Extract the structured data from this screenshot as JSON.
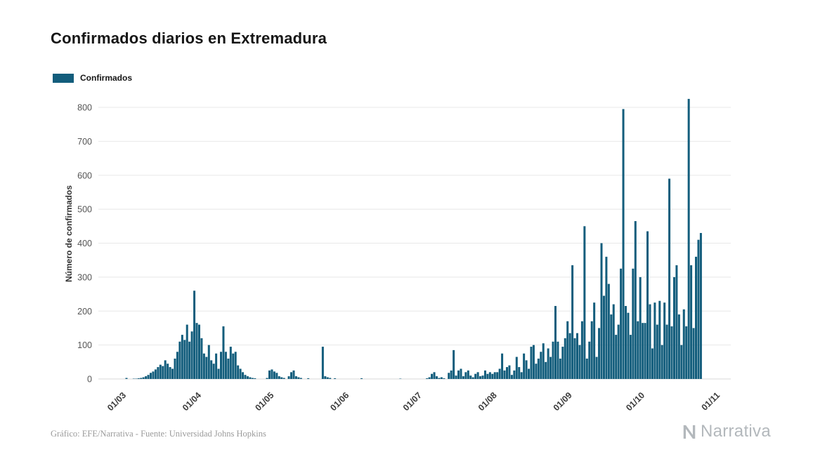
{
  "page": {
    "title": "Confirmados diarios en Extremadura"
  },
  "legend": {
    "label": "Confirmados",
    "color": "#135d7c"
  },
  "footer": {
    "credit": "Gráfico: EFE/Narrativa - Fuente: Universidad Johns Hopkins",
    "brand": "Narrativa"
  },
  "chart_data": {
    "type": "bar",
    "title": "Confirmados diarios en Extremadura",
    "xlabel": "",
    "ylabel": "Número de confirmados",
    "ylim": [
      0,
      800
    ],
    "yticks": [
      0,
      100,
      200,
      300,
      400,
      500,
      600,
      700,
      800
    ],
    "grid": true,
    "legend_position": "top-left",
    "x_tick_labels": [
      "01/03",
      "01/04",
      "01/05",
      "01/06",
      "01/07",
      "01/08",
      "01/09",
      "01/10",
      "01/11"
    ],
    "x_tick_day_index": [
      0,
      31,
      61,
      92,
      122,
      153,
      184,
      214,
      245
    ],
    "series": [
      {
        "name": "Confirmados",
        "color": "#135d7c",
        "values": [
          3,
          0,
          0,
          1,
          1,
          2,
          3,
          5,
          8,
          12,
          18,
          22,
          28,
          35,
          42,
          38,
          55,
          45,
          35,
          30,
          60,
          80,
          110,
          130,
          115,
          160,
          110,
          140,
          260,
          165,
          160,
          120,
          75,
          65,
          100,
          55,
          45,
          75,
          30,
          80,
          155,
          80,
          60,
          95,
          75,
          80,
          40,
          30,
          20,
          12,
          8,
          5,
          3,
          2,
          0,
          0,
          0,
          0,
          3,
          25,
          28,
          22,
          18,
          8,
          5,
          3,
          0,
          8,
          20,
          25,
          8,
          5,
          3,
          0,
          0,
          2,
          0,
          0,
          0,
          0,
          0,
          95,
          8,
          5,
          3,
          0,
          2,
          0,
          0,
          0,
          0,
          0,
          0,
          0,
          0,
          0,
          0,
          2,
          0,
          0,
          0,
          0,
          0,
          0,
          0,
          0,
          0,
          0,
          0,
          0,
          0,
          0,
          0,
          1,
          0,
          0,
          0,
          0,
          0,
          0,
          0,
          0,
          0,
          0,
          2,
          5,
          15,
          20,
          8,
          3,
          5,
          2,
          0,
          18,
          25,
          85,
          10,
          25,
          30,
          8,
          20,
          25,
          10,
          5,
          15,
          20,
          8,
          10,
          25,
          15,
          20,
          15,
          20,
          20,
          30,
          75,
          25,
          35,
          40,
          12,
          25,
          65,
          35,
          20,
          75,
          55,
          30,
          95,
          100,
          45,
          60,
          80,
          105,
          50,
          90,
          65,
          110,
          215,
          110,
          60,
          95,
          120,
          170,
          135,
          335,
          120,
          135,
          100,
          170,
          450,
          60,
          110,
          170,
          225,
          65,
          150,
          400,
          245,
          360,
          280,
          190,
          220,
          130,
          160,
          325,
          795,
          215,
          195,
          130,
          325,
          465,
          170,
          300,
          165,
          165,
          435,
          220,
          90,
          225,
          160,
          230,
          100,
          225,
          160,
          590,
          155,
          300,
          335,
          190,
          100,
          205,
          155,
          825,
          335,
          150,
          360,
          410,
          430,
          0,
          0,
          0,
          0,
          0,
          0,
          0
        ]
      }
    ]
  }
}
